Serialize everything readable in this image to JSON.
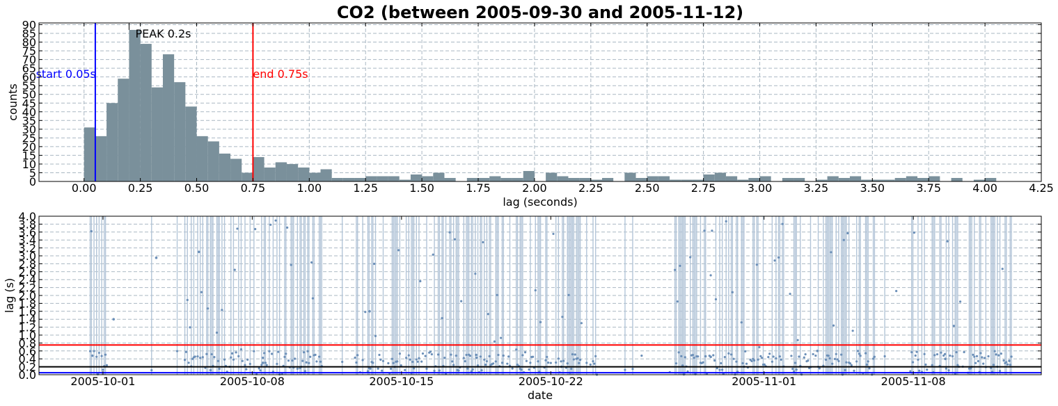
{
  "chart_data": [
    {
      "type": "bar",
      "title": "CO2 (between 2005-09-30 and 2005-11-12)",
      "xlabel": "lag (seconds)",
      "ylabel": "counts",
      "xlim": [
        -0.2,
        4.25
      ],
      "ylim": [
        0,
        91
      ],
      "grid": true,
      "bar_color": "#7a909b",
      "bin_width": 0.05,
      "x_ticks": [
        "0.00",
        "0.25",
        "0.50",
        "0.75",
        "1.00",
        "1.25",
        "1.50",
        "1.75",
        "2.00",
        "2.25",
        "2.50",
        "2.75",
        "3.00",
        "3.25",
        "3.50",
        "3.75",
        "4.00",
        "4.25"
      ],
      "y_ticks": [
        "0",
        "5",
        "10",
        "15",
        "20",
        "25",
        "30",
        "35",
        "40",
        "45",
        "50",
        "55",
        "60",
        "65",
        "70",
        "75",
        "80",
        "85",
        "90"
      ],
      "bins": [
        0.0,
        0.05,
        0.1,
        0.15,
        0.2,
        0.25,
        0.3,
        0.35,
        0.4,
        0.45,
        0.5,
        0.55,
        0.6,
        0.65,
        0.7,
        0.75,
        0.8,
        0.85,
        0.9,
        0.95,
        1.0,
        1.05,
        1.1,
        1.15,
        1.2,
        1.25,
        1.3,
        1.35,
        1.4,
        1.45,
        1.5,
        1.55,
        1.6,
        1.65,
        1.7,
        1.75,
        1.8,
        1.85,
        1.9,
        1.95,
        2.0,
        2.05,
        2.1,
        2.15,
        2.2,
        2.25,
        2.3,
        2.35,
        2.4,
        2.45,
        2.5,
        2.55,
        2.6,
        2.65,
        2.7,
        2.75,
        2.8,
        2.85,
        2.9,
        2.95,
        3.0,
        3.05,
        3.1,
        3.15,
        3.2,
        3.25,
        3.3,
        3.35,
        3.4,
        3.45,
        3.5,
        3.55,
        3.6,
        3.65,
        3.7,
        3.75,
        3.8,
        3.85,
        3.9,
        3.95,
        4.0
      ],
      "values": [
        31,
        26,
        45,
        59,
        87,
        79,
        54,
        73,
        57,
        43,
        26,
        23,
        16,
        13,
        5,
        14,
        8,
        11,
        10,
        8,
        5,
        7,
        2,
        2,
        2,
        3,
        3,
        3,
        1,
        4,
        3,
        5,
        2,
        0,
        2,
        2,
        3,
        2,
        2,
        6,
        0,
        5,
        3,
        2,
        2,
        1,
        2,
        0,
        5,
        2,
        3,
        3,
        1,
        1,
        1,
        4,
        5,
        3,
        1,
        2,
        3,
        0,
        2,
        2,
        0,
        1,
        3,
        2,
        3,
        1,
        1,
        1,
        2,
        3,
        2,
        3,
        0,
        2,
        0,
        1,
        2
      ],
      "annotations": [
        {
          "label": "start 0.05s",
          "x": 0.05,
          "color": "#0000ff"
        },
        {
          "label": "PEAK 0.2s",
          "x": 0.2,
          "color": "#000000"
        },
        {
          "label": "end 0.75s",
          "x": 0.75,
          "color": "#ff0000"
        }
      ]
    },
    {
      "type": "scatter",
      "xlabel": "date",
      "ylabel": "lag (s)",
      "xlim": [
        "2005-09-28",
        "2005-11-14"
      ],
      "ylim": [
        0,
        4.0
      ],
      "grid": true,
      "point_color": "#6b8fb8",
      "x_ticks": [
        "2005-10-01",
        "2005-10-08",
        "2005-10-15",
        "2005-10-22",
        "2005-11-01",
        "2005-11-08"
      ],
      "y_ticks": [
        "0.0",
        "0.2",
        "0.4",
        "0.6",
        "0.8",
        "1.0",
        "1.2",
        "1.4",
        "1.6",
        "1.8",
        "2.0",
        "2.2",
        "2.4",
        "2.6",
        "2.8",
        "3.0",
        "3.2",
        "3.4",
        "3.6",
        "3.8",
        "4.0"
      ],
      "reference_lines": [
        {
          "y": 0.05,
          "color": "#0000ff"
        },
        {
          "y": 0.2,
          "color": "#000000"
        },
        {
          "y": 0.75,
          "color": "#ff0000"
        }
      ],
      "date_range": [
        "2005-09-30",
        "2005-11-12"
      ],
      "data_gaps": [
        [
          "2005-10-01",
          "2005-10-04"
        ],
        [
          "2005-10-11",
          "2005-10-12"
        ],
        [
          "2005-10-24",
          "2005-10-27"
        ],
        [
          "2005-11-06",
          "2005-11-07"
        ]
      ],
      "sample_points": [
        {
          "x": "2005-09-30",
          "y": 0.48
        },
        {
          "x": "2005-10-01",
          "y": 1.4
        },
        {
          "x": "2005-10-03",
          "y": 2.95
        },
        {
          "x": "2005-10-05",
          "y": 3.1
        },
        {
          "x": "2005-10-08",
          "y": 0.3
        },
        {
          "x": "2005-10-13",
          "y": 1.6
        },
        {
          "x": "2005-10-18",
          "y": 0.5
        },
        {
          "x": "2005-10-22",
          "y": 0.2
        },
        {
          "x": "2005-10-29",
          "y": 0.45
        },
        {
          "x": "2005-11-03",
          "y": 0.6
        },
        {
          "x": "2005-11-09",
          "y": 0.4
        },
        {
          "x": "2005-11-12",
          "y": 0.35
        }
      ]
    }
  ]
}
